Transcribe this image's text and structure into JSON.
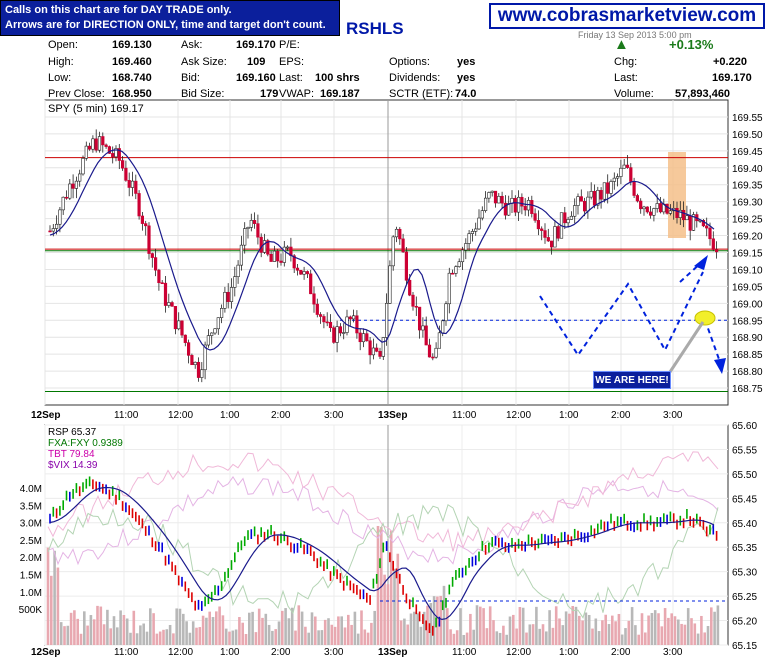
{
  "banner": {
    "calls_line1": "Calls on this chart are for DAY TRADE only.",
    "calls_line2": "Arrows are for DIRECTION ONLY, time and target don't count.",
    "website": "www.cobrasmarketview.com",
    "ticker_fragment": "RSHLS",
    "date_fragment": "Friday 13 Sep 2013 5:00 pm"
  },
  "quote": {
    "open_label": "Open:",
    "open": "169.130",
    "high_label": "High:",
    "high": "169.460",
    "low_label": "Low:",
    "low": "168.740",
    "prev_close_label": "Prev Close:",
    "prev_close": "168.950",
    "ask_label": "Ask:",
    "ask": "169.170",
    "ask_size_label": "Ask Size:",
    "ask_size": "109",
    "bid_label": "Bid:",
    "bid": "169.160",
    "bid_size_label": "Bid Size:",
    "bid_size": "179",
    "pe_label": "P/E:",
    "eps_label": "EPS:",
    "last_shares_label": "Last:",
    "last_shares": "100 shrs",
    "vwap_label": "VWAP:",
    "vwap": "169.187",
    "options_label": "Options:",
    "options": "yes",
    "dividends_label": "Dividends:",
    "dividends": "yes",
    "sctr_label": "SCTR (ETF):",
    "sctr": "74.0",
    "pct_change": "+0.13%",
    "chg_label": "Chg:",
    "chg": "+0.220",
    "last_label": "Last:",
    "last": "169.170",
    "volume_label": "Volume:",
    "volume": "57,893,460"
  },
  "annotation": {
    "we_are_here": "WE ARE HERE!"
  },
  "colors": {
    "up_candle": "#ffffff",
    "down_candle": "#cc0033",
    "ma_line": "#1a1a8c",
    "resistance": "#cc0000",
    "support_green": "#007700",
    "projection": "#0022dd",
    "rsp_up": "#00aa00",
    "rsp_down": "#dd0000",
    "rsp_flat": "#0000dd",
    "volume_bar": "#e8a8b0",
    "highlight_band": "#f5c08a"
  },
  "chart_data": [
    {
      "type": "candlestick",
      "title": "SPY (5 min) 169.17",
      "ylim": [
        168.7,
        169.6
      ],
      "y_ticks": [
        "169.55",
        "169.50",
        "169.45",
        "169.40",
        "169.35",
        "169.30",
        "169.25",
        "169.20",
        "169.15",
        "169.10",
        "169.05",
        "169.00",
        "168.95",
        "168.90",
        "168.85",
        "168.80",
        "168.75"
      ],
      "x_ticks": [
        "12Sep",
        "11:00",
        "12:00",
        "1:00",
        "2:00",
        "3:00",
        "13Sep",
        "11:00",
        "12:00",
        "1:00",
        "2:00",
        "3:00"
      ],
      "price_levels": [
        169.43,
        169.16,
        168.95,
        168.74
      ],
      "grid": true,
      "last_price": 169.17
    },
    {
      "type": "line",
      "title": "RSP 65.37",
      "legend": [
        "FXA:FXY 0.9389",
        "TBT 79.84",
        "$VIX 14.39"
      ],
      "ylim": [
        65.15,
        65.6
      ],
      "y_ticks_right": [
        "65.60",
        "65.55",
        "65.50",
        "65.45",
        "65.40",
        "65.35",
        "65.30",
        "65.25",
        "65.20",
        "65.15"
      ],
      "volume_ticks_left": [
        "4.0M",
        "3.5M",
        "3.0M",
        "2.5M",
        "2.0M",
        "1.5M",
        "1.0M",
        "500K"
      ],
      "x_ticks": [
        "12Sep",
        "11:00",
        "12:00",
        "1:00",
        "2:00",
        "3:00",
        "13Sep",
        "11:00",
        "12:00",
        "1:00",
        "2:00",
        "3:00"
      ],
      "reference_level": 65.24,
      "last_value": 65.37
    }
  ]
}
